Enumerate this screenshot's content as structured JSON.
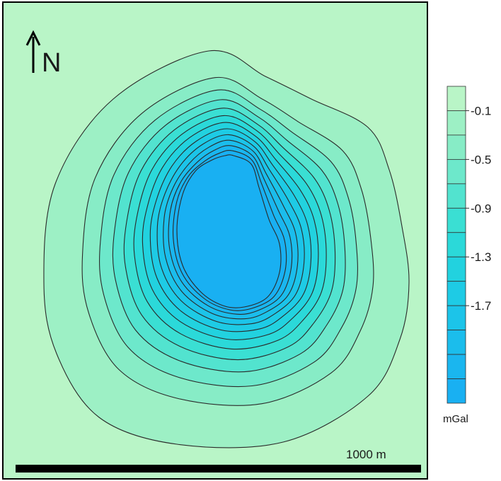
{
  "map": {
    "north_label": "N",
    "scale_label": "1000 m",
    "background_color": "#b9f5c7"
  },
  "legend": {
    "unit": "mGal",
    "tick_labels": [
      "-0.1",
      "-0.5",
      "-0.9",
      "-1.3",
      "-1.7"
    ],
    "colors": [
      "#b9f5c7",
      "#9df0c5",
      "#87ecc6",
      "#6de8cb",
      "#52e3cf",
      "#3adfd3",
      "#2bd9d9",
      "#22d2df",
      "#1ecbe5",
      "#1cc4e9",
      "#1bbdec",
      "#1ab6ef",
      "#19b0f2"
    ]
  },
  "contour_levels": 12
}
